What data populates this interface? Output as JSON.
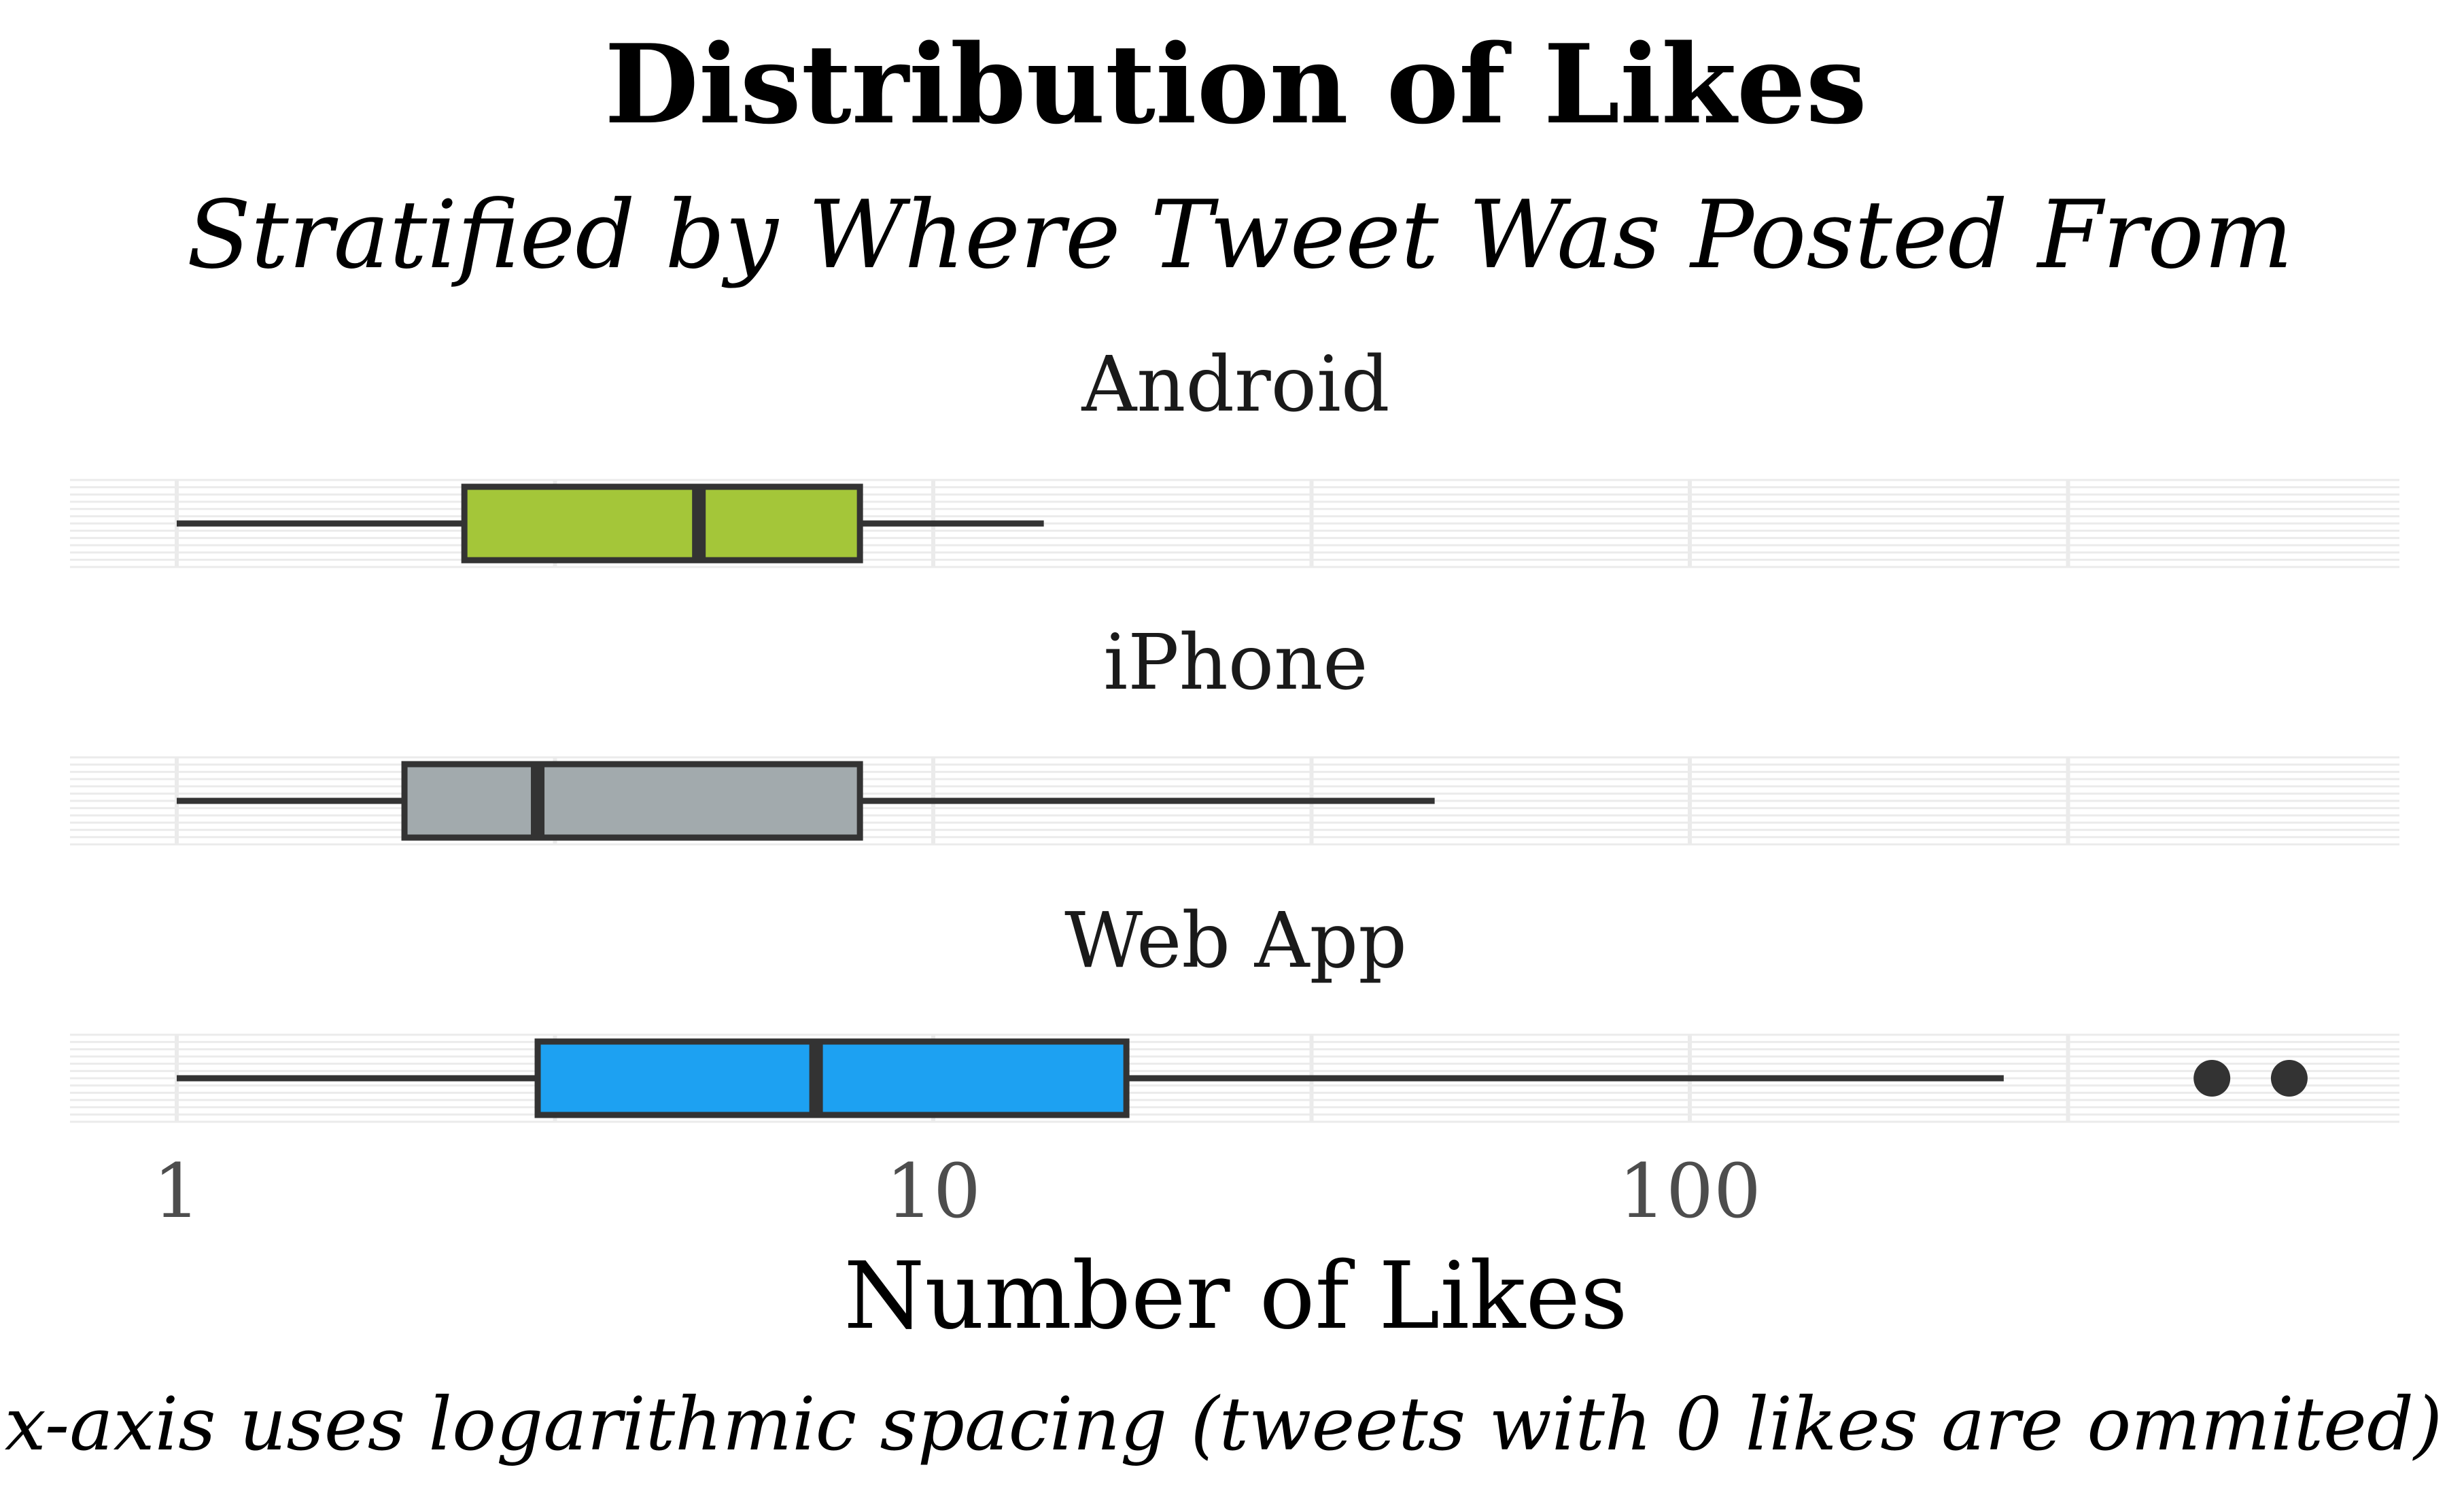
{
  "chart_data": {
    "type": "boxplot",
    "title": "Distribution of Likes",
    "subtitle": "Stratified by Where Tweet Was Posted From",
    "xlabel": "Number of Likes",
    "caption": "x-axis uses logarithmic spacing (tweets with 0 likes are ommited)",
    "x_scale": "log10",
    "xlim": [
      0.72,
      900
    ],
    "x_ticks": [
      1,
      10,
      100
    ],
    "x_tick_labels": [
      "1",
      "10",
      "100"
    ],
    "grid": true,
    "series": [
      {
        "name": "Android",
        "color": "#A4C639",
        "whisker_low": 1,
        "q1": 2.4,
        "median": 4.9,
        "q3": 8,
        "whisker_high": 14,
        "outliers": []
      },
      {
        "name": "iPhone",
        "color": "#A2AAAD",
        "whisker_low": 1,
        "q1": 2,
        "median": 3,
        "q3": 8,
        "whisker_high": 46,
        "outliers": []
      },
      {
        "name": "Web App",
        "color": "#1DA1F2",
        "whisker_low": 1,
        "q1": 3,
        "median": 7,
        "q3": 18,
        "whisker_high": 260,
        "outliers": [
          490,
          620
        ]
      }
    ]
  }
}
